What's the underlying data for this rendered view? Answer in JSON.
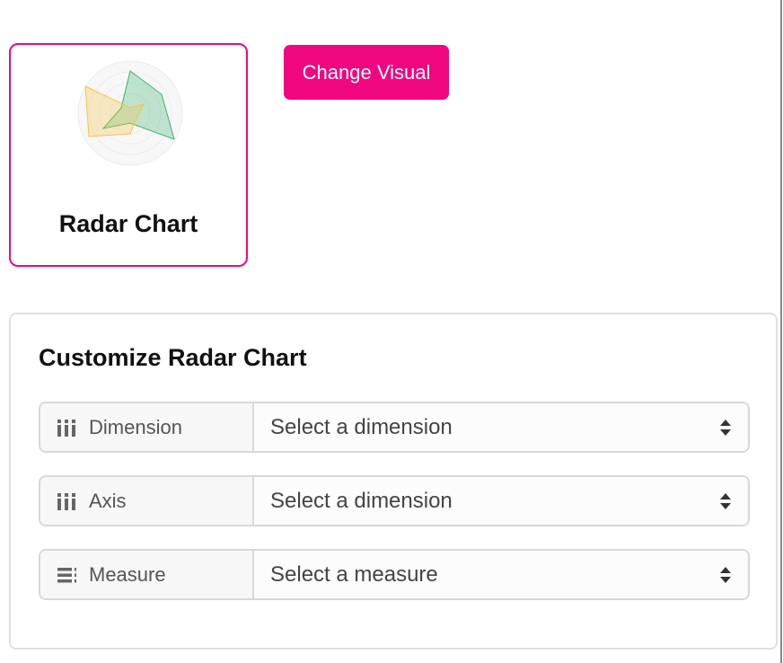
{
  "visual_card": {
    "title": "Radar Chart",
    "thumbnail_icon": "radar-chart-icon",
    "accent_color": "#f0077f",
    "series_colors": [
      "#3cb371",
      "#f5c542"
    ]
  },
  "change_visual_button": {
    "label": "Change Visual",
    "color": "#f0077f"
  },
  "customize": {
    "title": "Customize Radar Chart",
    "fields": [
      {
        "label": "Dimension",
        "icon": "dimension-icon",
        "value": "Select a dimension"
      },
      {
        "label": "Axis",
        "icon": "dimension-icon",
        "value": "Select a dimension"
      },
      {
        "label": "Measure",
        "icon": "measure-icon",
        "value": "Select a measure"
      }
    ]
  }
}
